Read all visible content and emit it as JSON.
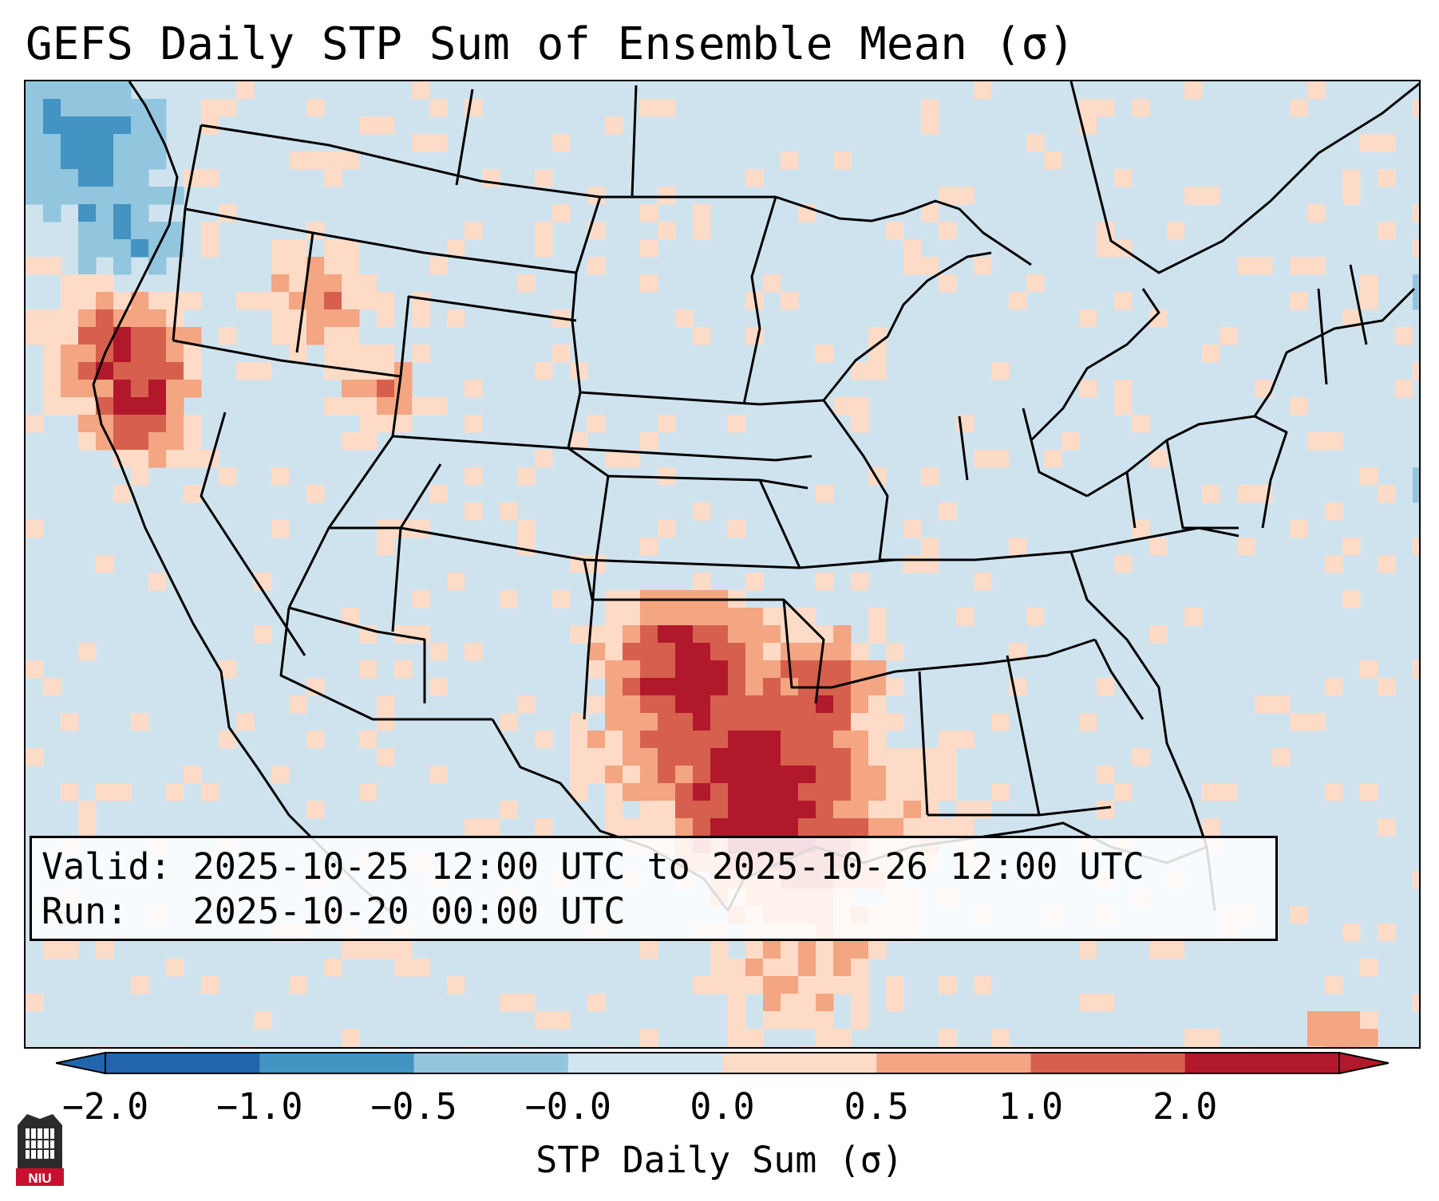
{
  "title": "GEFS Daily STP Sum of Ensemble Mean (σ)",
  "valid_line": "Valid: 2025-10-25 12:00 UTC to 2025-10-26 12:00 UTC",
  "run_line": "Run:   2025-10-20 00:00 UTC",
  "colorbar": {
    "label": "STP Daily Sum (σ)",
    "ticks": [
      "−2.0",
      "−1.0",
      "−0.5",
      "−0.0",
      "0.0",
      "0.5",
      "1.0",
      "2.0"
    ],
    "colors": [
      "#2166ac",
      "#4393c3",
      "#92c5de",
      "#d1e5f0",
      "#fddbc7",
      "#f4a582",
      "#d6604d",
      "#b2182b"
    ]
  },
  "colors": {
    "background": "#cfe3ef",
    "boundaries": "#000000"
  },
  "logo": {
    "text": "NIU",
    "icon": "university-logo-icon"
  }
}
